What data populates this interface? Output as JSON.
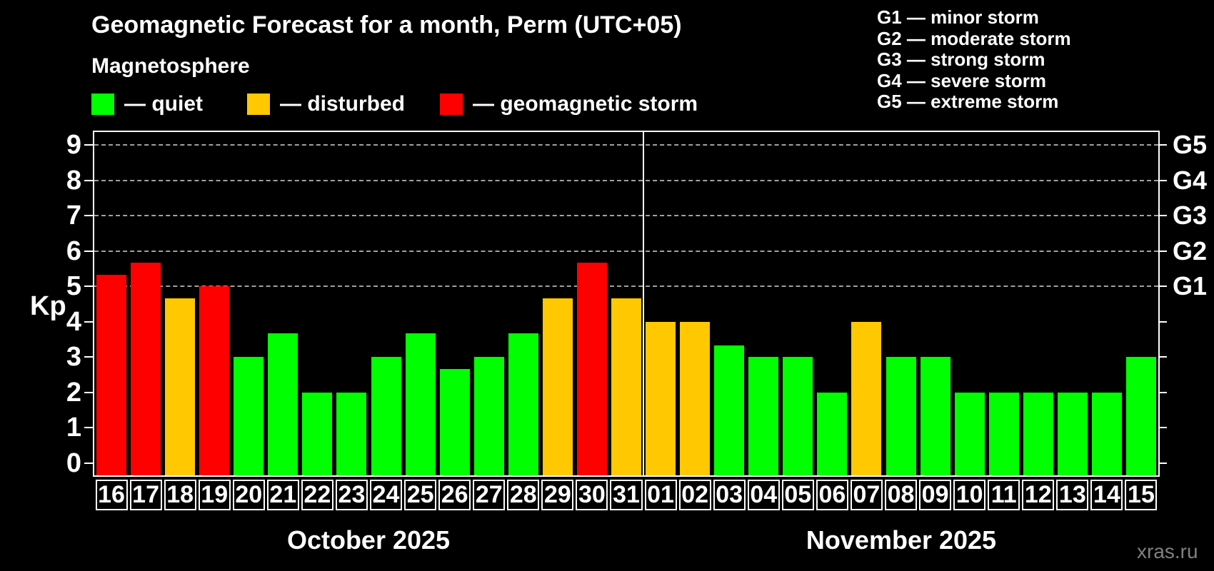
{
  "title": "Geomagnetic Forecast for a month, Perm (UTC+05)",
  "subtitle": "Magnetosphere",
  "legend": {
    "quiet_label": "— quiet",
    "disturbed_label": "— disturbed",
    "storm_label": "— geomagnetic storm"
  },
  "storm_scale": [
    "G1 — minor storm",
    "G2 — moderate storm",
    "G3 — strong storm",
    "G4 — severe storm",
    "G5 — extreme storm"
  ],
  "colors": {
    "quiet": "#00ff00",
    "disturbed": "#ffc800",
    "storm": "#ff0000",
    "grid": "#a0a0a0",
    "axis": "#ffffff",
    "background": "#000000",
    "watermark": "#808080"
  },
  "y_axis": {
    "label": "Kp",
    "ticks": [
      0,
      1,
      2,
      3,
      4,
      5,
      6,
      7,
      8,
      9
    ]
  },
  "right_axis": {
    "g_labels": [
      {
        "kp": 5,
        "label": "G1"
      },
      {
        "kp": 6,
        "label": "G2"
      },
      {
        "kp": 7,
        "label": "G3"
      },
      {
        "kp": 8,
        "label": "G4"
      },
      {
        "kp": 9,
        "label": "G5"
      }
    ],
    "grid_kp": [
      5,
      6,
      7,
      8,
      9
    ]
  },
  "months": [
    {
      "name": "October 2025",
      "days": [
        {
          "day": "16",
          "kp": 5.33,
          "level": "storm"
        },
        {
          "day": "17",
          "kp": 5.67,
          "level": "storm"
        },
        {
          "day": "18",
          "kp": 4.67,
          "level": "disturbed"
        },
        {
          "day": "19",
          "kp": 5.0,
          "level": "storm"
        },
        {
          "day": "20",
          "kp": 3.0,
          "level": "quiet"
        },
        {
          "day": "21",
          "kp": 3.67,
          "level": "quiet"
        },
        {
          "day": "22",
          "kp": 2.0,
          "level": "quiet"
        },
        {
          "day": "23",
          "kp": 2.0,
          "level": "quiet"
        },
        {
          "day": "24",
          "kp": 3.0,
          "level": "quiet"
        },
        {
          "day": "25",
          "kp": 3.67,
          "level": "quiet"
        },
        {
          "day": "26",
          "kp": 2.67,
          "level": "quiet"
        },
        {
          "day": "27",
          "kp": 3.0,
          "level": "quiet"
        },
        {
          "day": "28",
          "kp": 3.67,
          "level": "quiet"
        },
        {
          "day": "29",
          "kp": 4.67,
          "level": "disturbed"
        },
        {
          "day": "30",
          "kp": 5.67,
          "level": "storm"
        },
        {
          "day": "31",
          "kp": 4.67,
          "level": "disturbed"
        }
      ]
    },
    {
      "name": "November 2025",
      "days": [
        {
          "day": "01",
          "kp": 4.0,
          "level": "disturbed"
        },
        {
          "day": "02",
          "kp": 4.0,
          "level": "disturbed"
        },
        {
          "day": "03",
          "kp": 3.33,
          "level": "quiet"
        },
        {
          "day": "04",
          "kp": 3.0,
          "level": "quiet"
        },
        {
          "day": "05",
          "kp": 3.0,
          "level": "quiet"
        },
        {
          "day": "06",
          "kp": 2.0,
          "level": "quiet"
        },
        {
          "day": "07",
          "kp": 4.0,
          "level": "disturbed"
        },
        {
          "day": "08",
          "kp": 3.0,
          "level": "quiet"
        },
        {
          "day": "09",
          "kp": 3.0,
          "level": "quiet"
        },
        {
          "day": "10",
          "kp": 2.0,
          "level": "quiet"
        },
        {
          "day": "11",
          "kp": 2.0,
          "level": "quiet"
        },
        {
          "day": "12",
          "kp": 2.0,
          "level": "quiet"
        },
        {
          "day": "13",
          "kp": 2.0,
          "level": "quiet"
        },
        {
          "day": "14",
          "kp": 2.0,
          "level": "quiet"
        },
        {
          "day": "15",
          "kp": 3.0,
          "level": "quiet"
        }
      ]
    }
  ],
  "watermark": "xras.ru",
  "chart_data": {
    "type": "bar",
    "title": "Geomagnetic Forecast for a month, Perm (UTC+05)",
    "subtitle": "Magnetosphere",
    "xlabel": "",
    "ylabel": "Kp",
    "ylim": [
      0,
      9
    ],
    "grid": "dashed horizontal lines at Kp 5,6,7,8,9 (G1–G5 levels)",
    "legend_position": "top-left (series colors) and top-right (G storm scale)",
    "categories": [
      "Oct 16",
      "Oct 17",
      "Oct 18",
      "Oct 19",
      "Oct 20",
      "Oct 21",
      "Oct 22",
      "Oct 23",
      "Oct 24",
      "Oct 25",
      "Oct 26",
      "Oct 27",
      "Oct 28",
      "Oct 29",
      "Oct 30",
      "Oct 31",
      "Nov 01",
      "Nov 02",
      "Nov 03",
      "Nov 04",
      "Nov 05",
      "Nov 06",
      "Nov 07",
      "Nov 08",
      "Nov 09",
      "Nov 10",
      "Nov 11",
      "Nov 12",
      "Nov 13",
      "Nov 14",
      "Nov 15"
    ],
    "values": [
      5.33,
      5.67,
      4.67,
      5.0,
      3.0,
      3.67,
      2.0,
      2.0,
      3.0,
      3.67,
      2.67,
      3.0,
      3.67,
      4.67,
      5.67,
      4.67,
      4.0,
      4.0,
      3.33,
      3.0,
      3.0,
      2.0,
      4.0,
      3.0,
      3.0,
      2.0,
      2.0,
      2.0,
      2.0,
      2.0,
      3.0
    ],
    "bar_levels": [
      "storm",
      "storm",
      "disturbed",
      "storm",
      "quiet",
      "quiet",
      "quiet",
      "quiet",
      "quiet",
      "quiet",
      "quiet",
      "quiet",
      "quiet",
      "disturbed",
      "storm",
      "disturbed",
      "disturbed",
      "disturbed",
      "quiet",
      "quiet",
      "quiet",
      "quiet",
      "disturbed",
      "quiet",
      "quiet",
      "quiet",
      "quiet",
      "quiet",
      "quiet",
      "quiet",
      "quiet"
    ],
    "level_colors": {
      "quiet": "#00ff00",
      "disturbed": "#ffc800",
      "storm": "#ff0000"
    },
    "right_axis_labels": {
      "5": "G1",
      "6": "G2",
      "7": "G3",
      "8": "G4",
      "9": "G5"
    }
  }
}
